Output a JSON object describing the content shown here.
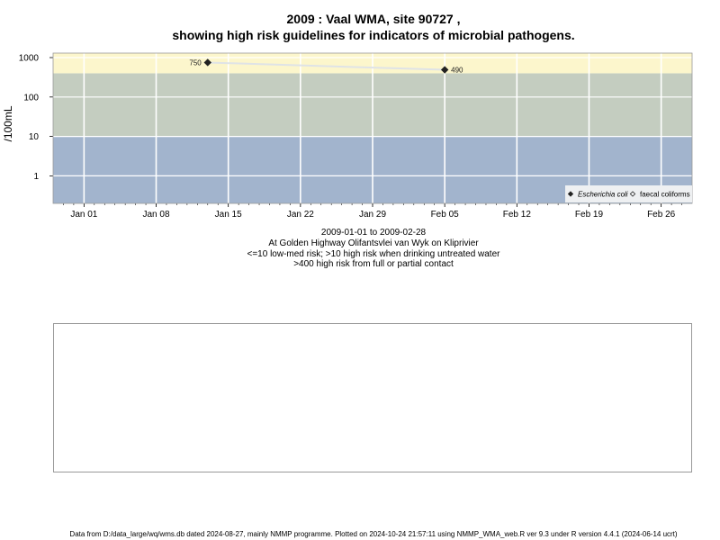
{
  "chart_data": {
    "type": "scatter",
    "title": "2009 : Vaal WMA, site 90727 ,",
    "subtitle": "showing high risk guidelines for indicators of microbial pathogens.",
    "ylabel": "/100mL",
    "yscale": "log",
    "ylim": [
      0.2,
      1300
    ],
    "xlim": [
      "2008-12-29",
      "2009-03-01"
    ],
    "y_ticks": [
      1,
      10,
      100,
      1000
    ],
    "y_tick_labels": [
      "1",
      "10",
      "100",
      "1000"
    ],
    "x_ticks": [
      "2009-01-01",
      "2009-01-08",
      "2009-01-15",
      "2009-01-22",
      "2009-01-29",
      "2009-02-05",
      "2009-02-12",
      "2009-02-19",
      "2009-02-26"
    ],
    "x_tick_labels": [
      "Jan 01",
      "Jan 08",
      "Jan 15",
      "Jan 22",
      "Jan 29",
      "Feb 05",
      "Feb 12",
      "Feb 19",
      "Feb 26"
    ],
    "grid": true,
    "bands": [
      {
        "from": 0.2,
        "to": 10,
        "color": "#a2b4cd"
      },
      {
        "from": 10,
        "to": 400,
        "color": "#c4cdc0"
      },
      {
        "from": 400,
        "to": 1300,
        "color": "#fcf6cc"
      }
    ],
    "series": [
      {
        "name": "Escherichia coli",
        "marker": "diamond-filled",
        "color": "#222222",
        "points": [
          {
            "x": "2009-01-13",
            "y": 750,
            "label": "750"
          },
          {
            "x": "2009-02-05",
            "y": 490,
            "label": "490"
          }
        ]
      },
      {
        "name": "faecal coliforms",
        "marker": "diamond-open",
        "color": "#222222",
        "points": []
      }
    ],
    "legend_position": "bottom-right",
    "trend_line_color": "#dfe3e6"
  },
  "captions": {
    "date_range": "2009-01-01 to 2009-02-28",
    "location": "At Golden Highway Olifantsvlei van Wyk on Kliprivier",
    "risk_low": "<=10 low-med risk; >10 high risk when drinking untreated water",
    "risk_high": ">400 high risk from full or partial contact"
  },
  "footer": "Data from D:/data_large/wq/wms.db dated 2024-08-27, mainly NMMP programme. Plotted on 2024-10-24 21:57:11 using NMMP_WMA_web.R ver 9.3 under R version 4.4.1 (2024-06-14 ucrt)"
}
